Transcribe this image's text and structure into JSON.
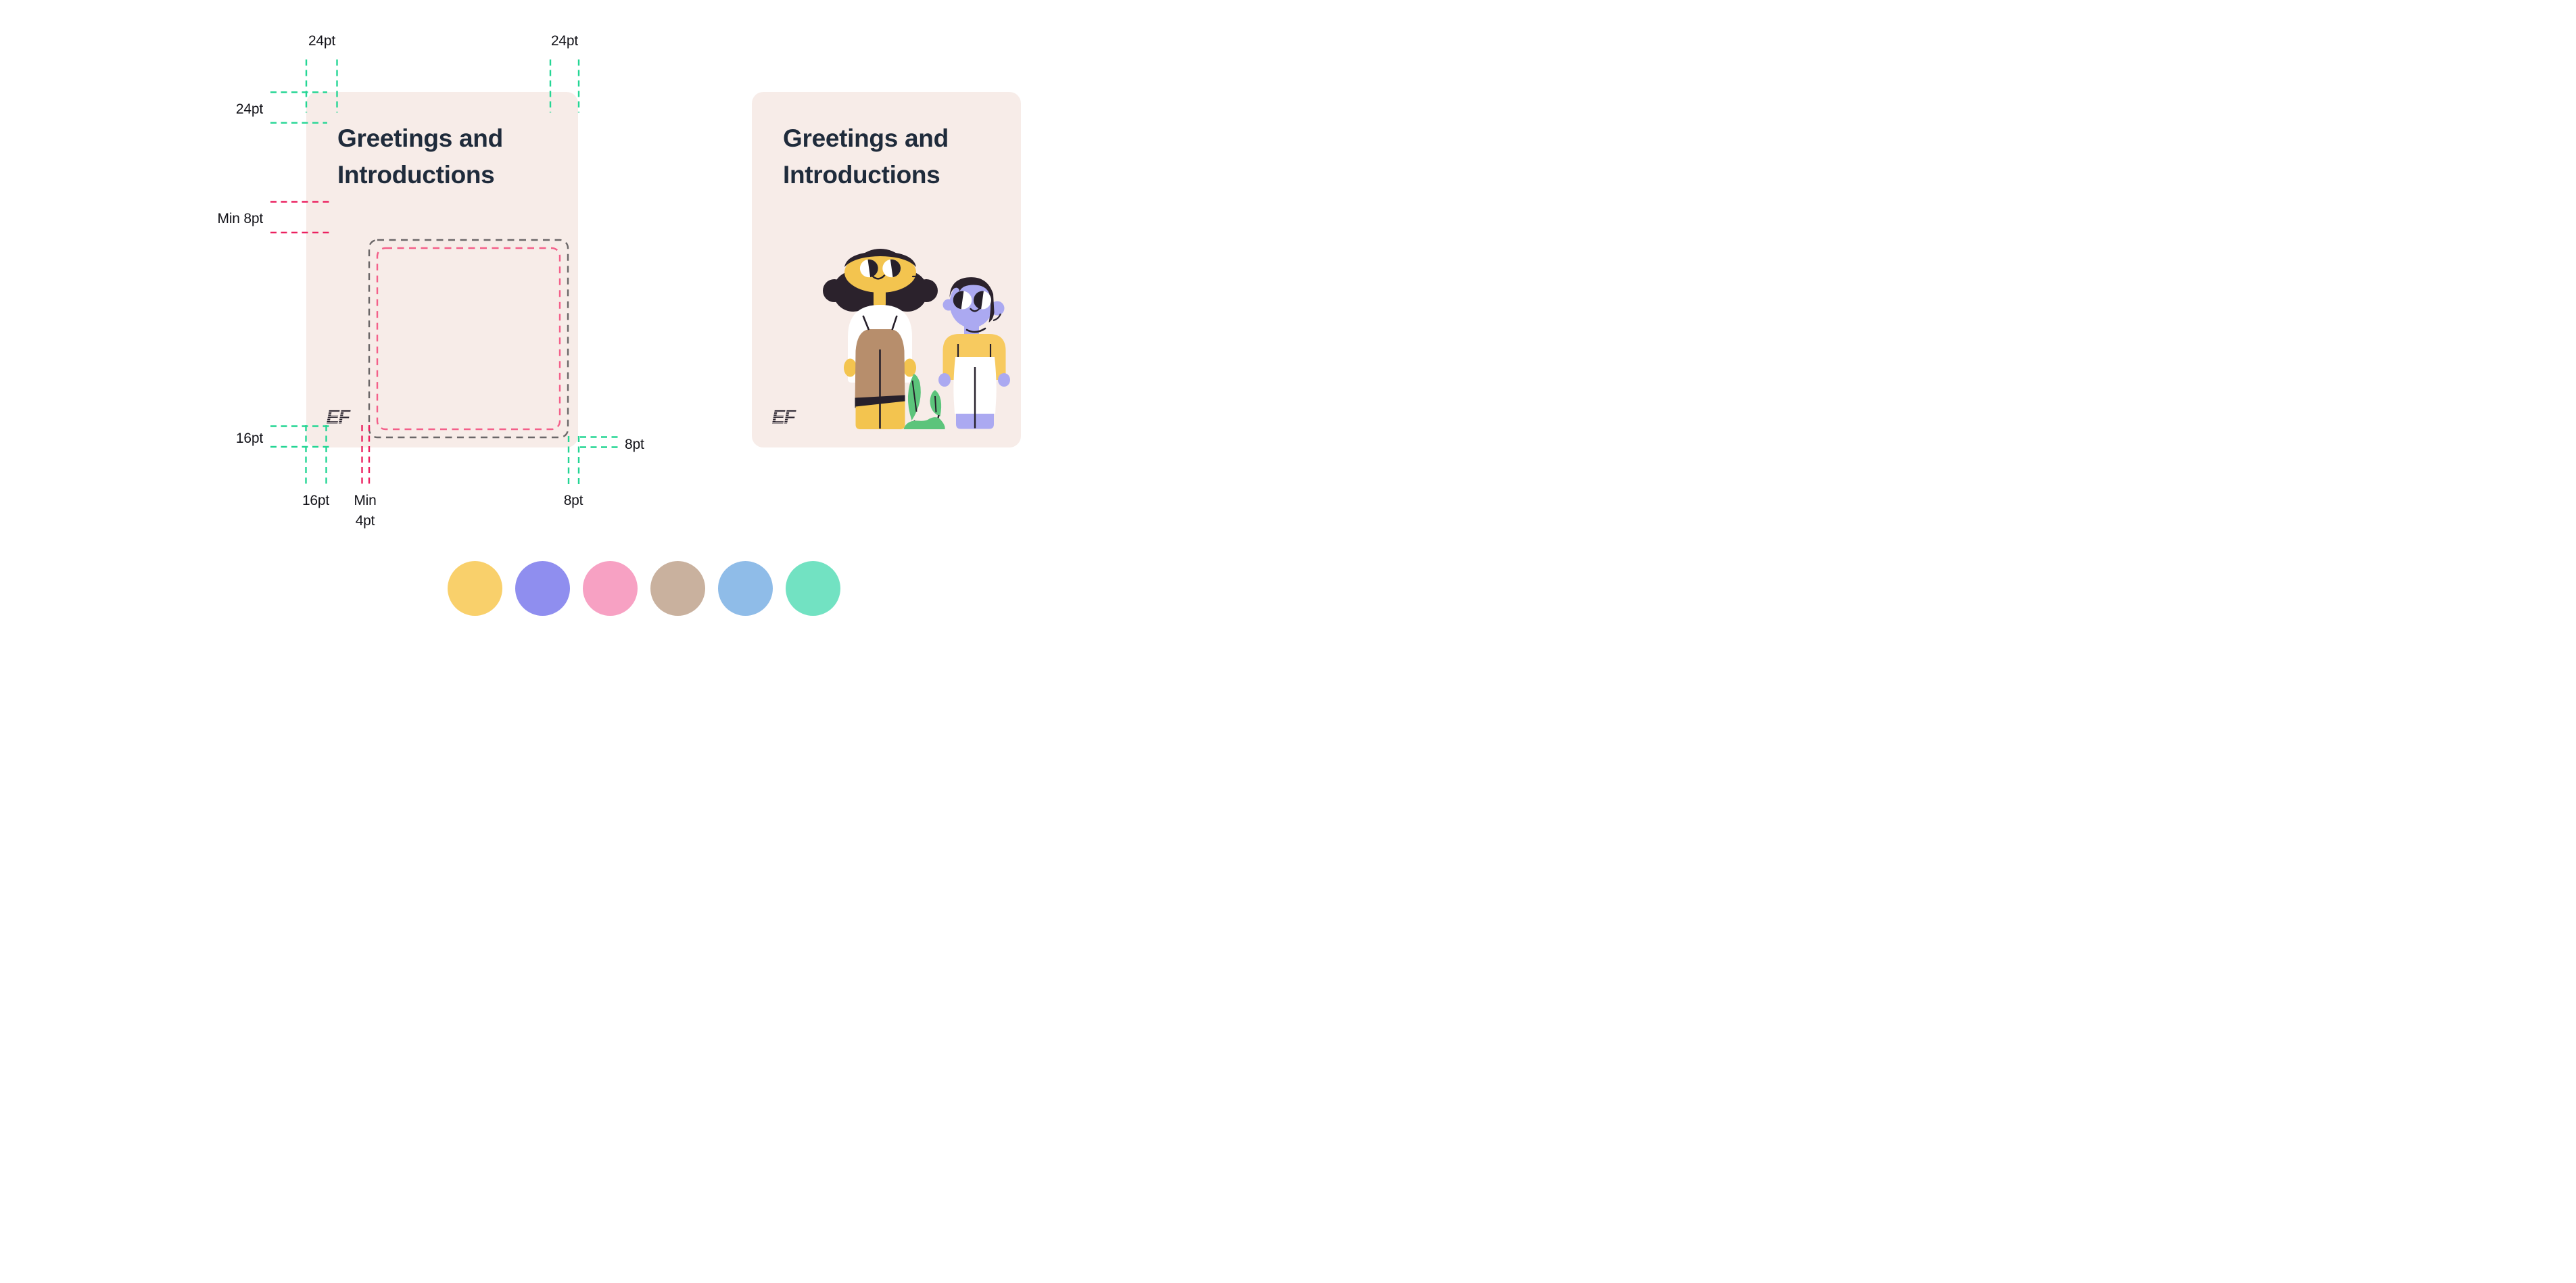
{
  "page": {
    "background": "#FFFFFF"
  },
  "card": {
    "background": "#F7ECE8",
    "title_line1": "Greetings and",
    "title_line2": "Introductions",
    "title_color": "#1F2B3B",
    "logo_text": "EF",
    "logo_color": "#26202B"
  },
  "spec": {
    "labels": {
      "top_left_margin": "24pt",
      "top_right_margin": "24pt",
      "title_top_margin": "24pt",
      "text_to_image_gap": "Min 8pt",
      "logo_bottom_margin": "16pt",
      "logo_left_margin": "16pt",
      "logo_gap_line1": "Min",
      "logo_gap_line2": "4pt",
      "image_right_margin": "8pt",
      "image_bottom_margin": "8pt"
    },
    "colors": {
      "margin_green": "#24D694",
      "min_gap_crimson": "#EB2160",
      "safe_area_gray": "#6B6768",
      "image_area_pink": "#F4608A"
    }
  },
  "illustration": {
    "alt": "Two smiling people standing next to a small plant",
    "colors": {
      "skin_yellow": "#F3C44F",
      "hair_dark": "#2B222C",
      "line_dark": "#26202B",
      "shirt_white": "#FFFFFF",
      "pants_tan": "#B78E6C",
      "skin_periwinkle": "#ABA9F1",
      "shirt_yellow": "#F7CA5F",
      "plant_green": "#5CC47B"
    }
  },
  "palette": {
    "swatches": [
      {
        "name": "yellow",
        "hex": "#F9D06B"
      },
      {
        "name": "periwinkle",
        "hex": "#8F8EEF"
      },
      {
        "name": "pink",
        "hex": "#F7A1C3"
      },
      {
        "name": "tan",
        "hex": "#C9B19E"
      },
      {
        "name": "blue",
        "hex": "#8FBCE8"
      },
      {
        "name": "mint",
        "hex": "#72E2C2"
      }
    ]
  }
}
